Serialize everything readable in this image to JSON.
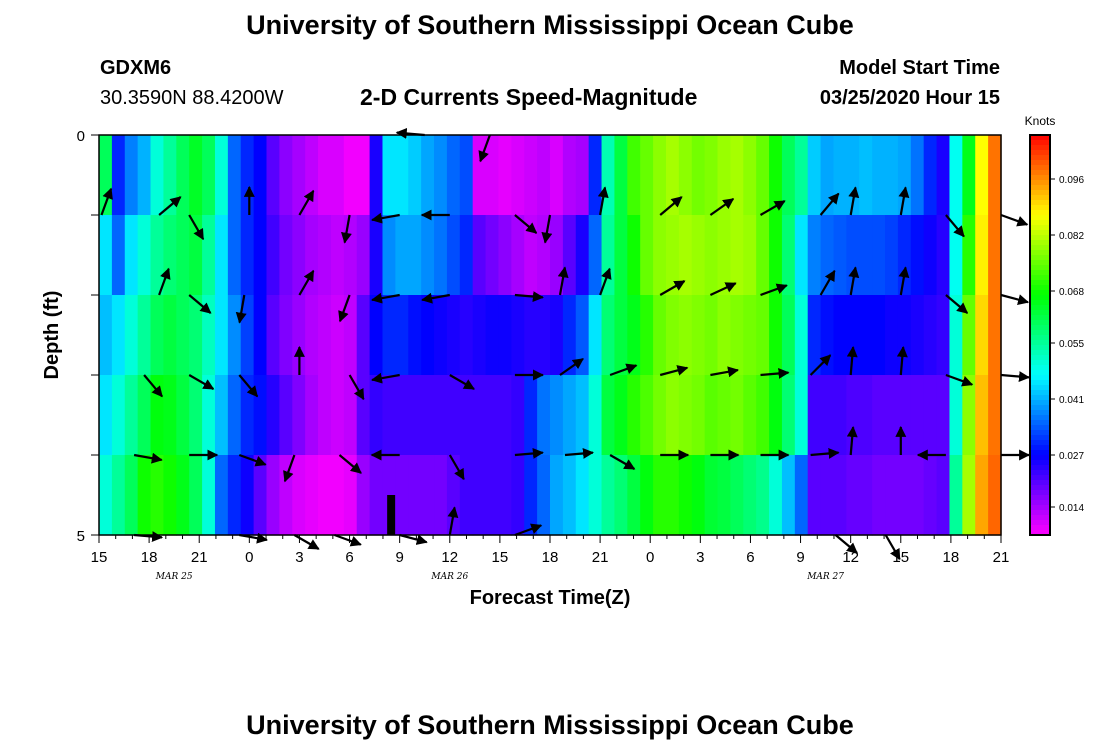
{
  "page": {
    "title_top": "University of Southern Mississippi Ocean Cube",
    "title_bottom": "University of Southern Mississippi Ocean Cube",
    "station": "GDXM6",
    "coords": "30.3590N 88.4200W",
    "plot_title": "2-D Currents Speed-Magnitude",
    "model_start_label": "Model Start Time",
    "model_start_value": "03/25/2020 Hour 15"
  },
  "chart_data": {
    "type": "heatmap",
    "title": "2-D Currents Speed-Magnitude",
    "xlabel": "Forecast Time(Z)",
    "ylabel": "Depth (ft)",
    "y_ticks": [
      "0",
      "5"
    ],
    "ylim": [
      0,
      5
    ],
    "x_tick_labels": [
      "15",
      "18",
      "21",
      "0",
      "3",
      "6",
      "9",
      "12",
      "15",
      "18",
      "21",
      "0",
      "3",
      "6",
      "9",
      "12",
      "15",
      "18",
      "21"
    ],
    "date_labels": [
      {
        "text": "MAR 25",
        "at_tick": 1.5
      },
      {
        "text": "MAR 26",
        "at_tick": 7
      },
      {
        "text": "MAR 27",
        "at_tick": 14.5
      }
    ],
    "colorbar": {
      "label": "Knots",
      "min": 0.007,
      "max": 0.107,
      "ticks": [
        "0.096",
        "0.082",
        "0.068",
        "0.055",
        "0.041",
        "0.027",
        "0.014"
      ],
      "tick_values": [
        0.096,
        0.082,
        0.068,
        0.055,
        0.041,
        0.027,
        0.014
      ]
    },
    "speed_rows": [
      [
        0.06,
        0.03,
        0.037,
        0.041,
        0.05,
        0.055,
        0.06,
        0.064,
        0.06,
        0.05,
        0.035,
        0.03,
        0.027,
        0.02,
        0.016,
        0.014,
        0.012,
        0.01,
        0.01,
        0.008,
        0.008,
        0.025,
        0.045,
        0.045,
        0.043,
        0.04,
        0.038,
        0.035,
        0.033,
        0.01,
        0.01,
        0.009,
        0.01,
        0.011,
        0.012,
        0.01,
        0.013,
        0.014,
        0.03,
        0.053,
        0.062,
        0.072,
        0.075,
        0.078,
        0.08,
        0.078,
        0.076,
        0.077,
        0.079,
        0.08,
        0.078,
        0.075,
        0.068,
        0.06,
        0.055,
        0.043,
        0.04,
        0.041,
        0.041,
        0.042,
        0.041,
        0.041,
        0.04,
        0.036,
        0.03,
        0.025,
        0.048,
        0.065,
        0.087,
        0.098
      ],
      [
        0.045,
        0.035,
        0.045,
        0.05,
        0.055,
        0.058,
        0.06,
        0.062,
        0.055,
        0.045,
        0.035,
        0.03,
        0.027,
        0.022,
        0.018,
        0.016,
        0.014,
        0.013,
        0.012,
        0.013,
        0.015,
        0.025,
        0.038,
        0.04,
        0.04,
        0.038,
        0.036,
        0.033,
        0.03,
        0.02,
        0.018,
        0.016,
        0.014,
        0.012,
        0.013,
        0.015,
        0.02,
        0.025,
        0.035,
        0.055,
        0.062,
        0.068,
        0.075,
        0.078,
        0.079,
        0.08,
        0.079,
        0.078,
        0.079,
        0.08,
        0.079,
        0.075,
        0.068,
        0.058,
        0.045,
        0.037,
        0.035,
        0.034,
        0.033,
        0.033,
        0.033,
        0.032,
        0.03,
        0.028,
        0.026,
        0.024,
        0.048,
        0.07,
        0.088,
        0.098
      ],
      [
        0.042,
        0.045,
        0.05,
        0.055,
        0.06,
        0.062,
        0.06,
        0.058,
        0.052,
        0.045,
        0.038,
        0.032,
        0.027,
        0.02,
        0.017,
        0.015,
        0.013,
        0.012,
        0.011,
        0.012,
        0.02,
        0.027,
        0.03,
        0.03,
        0.028,
        0.027,
        0.026,
        0.025,
        0.024,
        0.025,
        0.026,
        0.026,
        0.025,
        0.024,
        0.024,
        0.025,
        0.03,
        0.034,
        0.045,
        0.058,
        0.062,
        0.065,
        0.07,
        0.075,
        0.077,
        0.078,
        0.077,
        0.076,
        0.078,
        0.077,
        0.076,
        0.075,
        0.068,
        0.06,
        0.05,
        0.03,
        0.028,
        0.027,
        0.027,
        0.027,
        0.027,
        0.026,
        0.026,
        0.025,
        0.024,
        0.023,
        0.05,
        0.075,
        0.09,
        0.098
      ],
      [
        0.045,
        0.05,
        0.055,
        0.06,
        0.066,
        0.065,
        0.062,
        0.058,
        0.05,
        0.042,
        0.035,
        0.03,
        0.028,
        0.024,
        0.02,
        0.017,
        0.014,
        0.012,
        0.011,
        0.012,
        0.02,
        0.023,
        0.022,
        0.022,
        0.022,
        0.022,
        0.022,
        0.022,
        0.022,
        0.022,
        0.022,
        0.022,
        0.023,
        0.03,
        0.036,
        0.038,
        0.04,
        0.042,
        0.05,
        0.062,
        0.065,
        0.07,
        0.073,
        0.076,
        0.078,
        0.077,
        0.076,
        0.074,
        0.075,
        0.076,
        0.074,
        0.072,
        0.066,
        0.058,
        0.05,
        0.022,
        0.022,
        0.022,
        0.021,
        0.021,
        0.02,
        0.02,
        0.02,
        0.02,
        0.02,
        0.02,
        0.05,
        0.078,
        0.092,
        0.098
      ],
      [
        0.05,
        0.055,
        0.06,
        0.068,
        0.07,
        0.068,
        0.065,
        0.06,
        0.05,
        0.035,
        0.03,
        0.026,
        0.02,
        0.015,
        0.012,
        0.01,
        0.009,
        0.008,
        0.008,
        0.009,
        0.015,
        0.018,
        0.018,
        0.018,
        0.018,
        0.018,
        0.018,
        0.02,
        0.022,
        0.022,
        0.022,
        0.022,
        0.023,
        0.03,
        0.035,
        0.04,
        0.042,
        0.045,
        0.05,
        0.055,
        0.058,
        0.062,
        0.066,
        0.07,
        0.07,
        0.068,
        0.066,
        0.063,
        0.062,
        0.06,
        0.058,
        0.056,
        0.05,
        0.042,
        0.035,
        0.02,
        0.02,
        0.02,
        0.019,
        0.019,
        0.018,
        0.018,
        0.018,
        0.018,
        0.019,
        0.02,
        0.055,
        0.08,
        0.094,
        0.099
      ]
    ],
    "vectors": [
      {
        "row": 0,
        "col": 6.5,
        "angle_deg": 175
      },
      {
        "row": 0,
        "col": 7.8,
        "angle_deg": 250
      },
      {
        "row": 1,
        "col": 0.05,
        "angle_deg": 70
      },
      {
        "row": 1,
        "col": 1.2,
        "angle_deg": 40
      },
      {
        "row": 1,
        "col": 1.8,
        "angle_deg": -60
      },
      {
        "row": 1,
        "col": 3.0,
        "angle_deg": 90
      },
      {
        "row": 1,
        "col": 4.0,
        "angle_deg": 60
      },
      {
        "row": 1,
        "col": 5.0,
        "angle_deg": -100
      },
      {
        "row": 1,
        "col": 6.0,
        "angle_deg": 190
      },
      {
        "row": 1,
        "col": 7.0,
        "angle_deg": 180
      },
      {
        "row": 1,
        "col": 8.3,
        "angle_deg": -40
      },
      {
        "row": 1,
        "col": 9.0,
        "angle_deg": -100
      },
      {
        "row": 1,
        "col": 10.0,
        "angle_deg": 80
      },
      {
        "row": 1,
        "col": 11.2,
        "angle_deg": 40
      },
      {
        "row": 1,
        "col": 12.2,
        "angle_deg": 35
      },
      {
        "row": 1,
        "col": 13.2,
        "angle_deg": 30
      },
      {
        "row": 1,
        "col": 14.4,
        "angle_deg": 50
      },
      {
        "row": 1,
        "col": 15.0,
        "angle_deg": 80
      },
      {
        "row": 1,
        "col": 16.0,
        "angle_deg": 80
      },
      {
        "row": 1,
        "col": 16.9,
        "angle_deg": -50
      },
      {
        "row": 1,
        "col": 18.0,
        "angle_deg": -20
      },
      {
        "row": 2,
        "col": 1.2,
        "angle_deg": 70
      },
      {
        "row": 2,
        "col": 1.8,
        "angle_deg": -40
      },
      {
        "row": 2,
        "col": 2.9,
        "angle_deg": -100
      },
      {
        "row": 2,
        "col": 4.0,
        "angle_deg": 60
      },
      {
        "row": 2,
        "col": 5.0,
        "angle_deg": -110
      },
      {
        "row": 2,
        "col": 6.0,
        "angle_deg": 190
      },
      {
        "row": 2,
        "col": 7.0,
        "angle_deg": 190
      },
      {
        "row": 2,
        "col": 8.3,
        "angle_deg": -5
      },
      {
        "row": 2,
        "col": 9.2,
        "angle_deg": 80
      },
      {
        "row": 2,
        "col": 10.0,
        "angle_deg": 70
      },
      {
        "row": 2,
        "col": 11.2,
        "angle_deg": 30
      },
      {
        "row": 2,
        "col": 12.2,
        "angle_deg": 25
      },
      {
        "row": 2,
        "col": 13.2,
        "angle_deg": 20
      },
      {
        "row": 2,
        "col": 14.4,
        "angle_deg": 60
      },
      {
        "row": 2,
        "col": 15.0,
        "angle_deg": 80
      },
      {
        "row": 2,
        "col": 16.0,
        "angle_deg": 80
      },
      {
        "row": 2,
        "col": 16.9,
        "angle_deg": -40
      },
      {
        "row": 2,
        "col": 18.0,
        "angle_deg": -15
      },
      {
        "row": 3,
        "col": 0.9,
        "angle_deg": -50
      },
      {
        "row": 3,
        "col": 1.8,
        "angle_deg": -30
      },
      {
        "row": 3,
        "col": 2.8,
        "angle_deg": -50
      },
      {
        "row": 3,
        "col": 4.0,
        "angle_deg": 90
      },
      {
        "row": 3,
        "col": 5.0,
        "angle_deg": -60
      },
      {
        "row": 3,
        "col": 6.0,
        "angle_deg": 190
      },
      {
        "row": 3,
        "col": 7.0,
        "angle_deg": -30
      },
      {
        "row": 3,
        "col": 8.3,
        "angle_deg": 0
      },
      {
        "row": 3,
        "col": 9.2,
        "angle_deg": 35
      },
      {
        "row": 3,
        "col": 10.2,
        "angle_deg": 20
      },
      {
        "row": 3,
        "col": 11.2,
        "angle_deg": 15
      },
      {
        "row": 3,
        "col": 12.2,
        "angle_deg": 10
      },
      {
        "row": 3,
        "col": 13.2,
        "angle_deg": 5
      },
      {
        "row": 3,
        "col": 14.2,
        "angle_deg": 45
      },
      {
        "row": 3,
        "col": 15.0,
        "angle_deg": 85
      },
      {
        "row": 3,
        "col": 16.0,
        "angle_deg": 85
      },
      {
        "row": 3,
        "col": 16.9,
        "angle_deg": -20
      },
      {
        "row": 3,
        "col": 18.0,
        "angle_deg": -5
      },
      {
        "row": 4,
        "col": 0.7,
        "angle_deg": -10
      },
      {
        "row": 4,
        "col": 1.8,
        "angle_deg": 0
      },
      {
        "row": 4,
        "col": 2.8,
        "angle_deg": -20
      },
      {
        "row": 4,
        "col": 3.9,
        "angle_deg": -110
      },
      {
        "row": 4,
        "col": 4.8,
        "angle_deg": -40
      },
      {
        "row": 4,
        "col": 6.0,
        "angle_deg": 180
      },
      {
        "row": 4,
        "col": 7.0,
        "angle_deg": -60
      },
      {
        "row": 4,
        "col": 8.3,
        "angle_deg": 5
      },
      {
        "row": 4,
        "col": 9.3,
        "angle_deg": 5
      },
      {
        "row": 4,
        "col": 10.2,
        "angle_deg": -30
      },
      {
        "row": 4,
        "col": 11.2,
        "angle_deg": 0
      },
      {
        "row": 4,
        "col": 12.2,
        "angle_deg": 0
      },
      {
        "row": 4,
        "col": 13.2,
        "angle_deg": 0
      },
      {
        "row": 4,
        "col": 14.2,
        "angle_deg": 5
      },
      {
        "row": 4,
        "col": 15.0,
        "angle_deg": 85
      },
      {
        "row": 4,
        "col": 16.0,
        "angle_deg": 90
      },
      {
        "row": 4,
        "col": 16.9,
        "angle_deg": 180
      },
      {
        "row": 4,
        "col": 18.0,
        "angle_deg": 0
      },
      {
        "row": 5,
        "col": 0.7,
        "angle_deg": -5
      },
      {
        "row": 5,
        "col": 2.8,
        "angle_deg": -10
      },
      {
        "row": 5,
        "col": 3.9,
        "angle_deg": -30
      },
      {
        "row": 5,
        "col": 4.7,
        "angle_deg": -20
      },
      {
        "row": 5,
        "col": 6.0,
        "angle_deg": -15
      },
      {
        "row": 5,
        "col": 7.0,
        "angle_deg": 80
      },
      {
        "row": 5,
        "col": 8.3,
        "angle_deg": 20
      },
      {
        "row": 5,
        "col": 14.7,
        "angle_deg": -40
      },
      {
        "row": 5,
        "col": 15.7,
        "angle_deg": -60
      }
    ]
  }
}
